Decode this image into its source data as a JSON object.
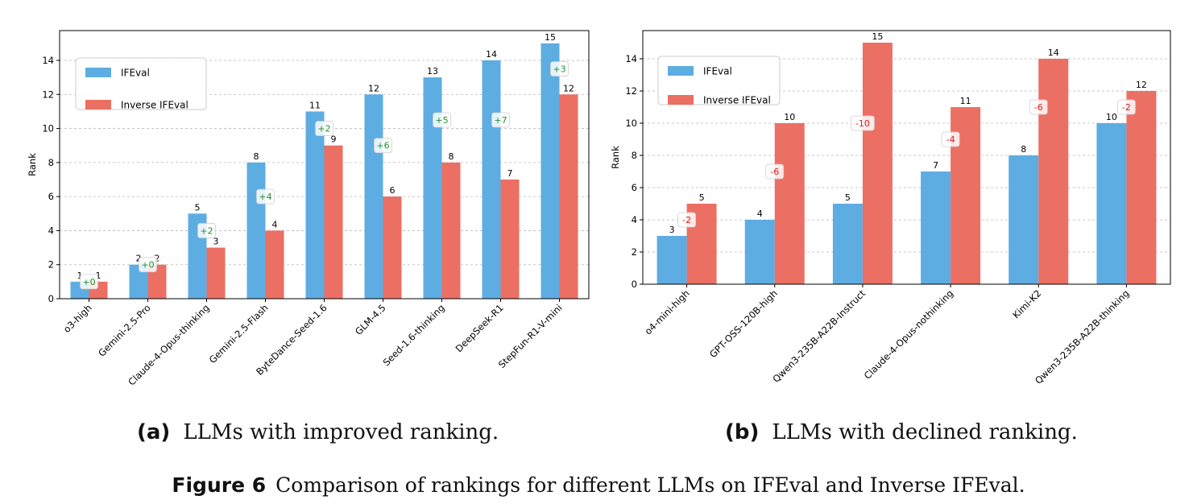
{
  "colors": {
    "ifeval": "#5dade2",
    "inverse": "#ec6f63",
    "grid": "#b8b8b8",
    "improve_text": "#1e8f2e",
    "decline_text": "#d62020",
    "axis": "#000000"
  },
  "chart_data": [
    {
      "id": "a",
      "type": "bar",
      "title": "",
      "xlabel": "",
      "ylabel": "Rank",
      "ylim": [
        0,
        15.75
      ],
      "yticks": [
        0,
        2,
        4,
        6,
        8,
        10,
        12,
        14
      ],
      "grid": true,
      "legend": {
        "position": "upper-left",
        "entries": [
          "IFEval",
          "Inverse IFEval"
        ]
      },
      "categories": [
        "o3-high",
        "Gemini-2.5-Pro",
        "Claude-4-Opus-thinking",
        "Gemini-2.5-Flash",
        "ByteDance-Seed-1.6",
        "GLM-4.5",
        "Seed-1.6-thinking",
        "DeepSeek-R1",
        "StepFun-R1-V-mini"
      ],
      "series": [
        {
          "name": "IFEval",
          "values": [
            1,
            2,
            5,
            8,
            11,
            12,
            13,
            14,
            15
          ]
        },
        {
          "name": "Inverse IFEval",
          "values": [
            1,
            2,
            3,
            4,
            9,
            6,
            8,
            7,
            12
          ]
        }
      ],
      "change_labels": [
        "+0",
        "+0",
        "+2",
        "+4",
        "+2",
        "+6",
        "+5",
        "+7",
        "+3"
      ],
      "change_direction": "improve",
      "subcaption_label": "(a)",
      "subcaption_text": "LLMs with improved ranking."
    },
    {
      "id": "b",
      "type": "bar",
      "title": "",
      "xlabel": "",
      "ylabel": "Rank",
      "ylim": [
        0,
        15.75
      ],
      "yticks": [
        0,
        2,
        4,
        6,
        8,
        10,
        12,
        14
      ],
      "grid": true,
      "legend": {
        "position": "upper-left",
        "entries": [
          "IFEval",
          "Inverse IFEval"
        ]
      },
      "categories": [
        "o4-mini-high",
        "GPT-OSS-120B-high",
        "Qwen3-235B-A22B-Instruct",
        "Claude-4-Opus-nothinking",
        "Kimi-K2",
        "Qwen3-235B-A22B-thinking"
      ],
      "series": [
        {
          "name": "IFEval",
          "values": [
            3,
            4,
            5,
            7,
            8,
            10
          ]
        },
        {
          "name": "Inverse IFEval",
          "values": [
            5,
            10,
            15,
            11,
            14,
            12
          ]
        }
      ],
      "change_labels": [
        "-2",
        "-6",
        "-10",
        "-4",
        "-6",
        "-2"
      ],
      "change_direction": "decline",
      "subcaption_label": "(b)",
      "subcaption_text": "LLMs with declined ranking."
    }
  ],
  "figure_caption": {
    "label": "Figure 6",
    "text": "Comparison of rankings for different LLMs on IFEval and Inverse IFEval."
  }
}
